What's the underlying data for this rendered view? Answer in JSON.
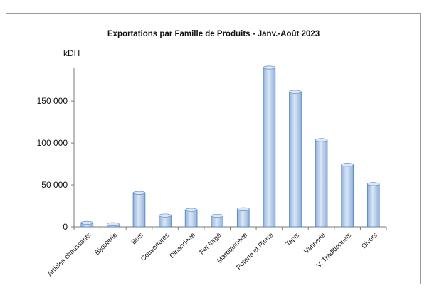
{
  "chart_data": {
    "type": "bar",
    "title": "Exportations  par Famille de Produits - Janv.-Août 2023",
    "unit_label": "kDH",
    "xlabel": "",
    "ylabel": "kDH",
    "categories": [
      "Articles chaussants",
      "Bijouterie",
      "Bois",
      "Couvertures",
      "Dinanderie",
      "Fer forgé",
      "Maroquinerie",
      "Poterie et Pierre",
      "Tapis",
      "Vannerie",
      "V. Traditionnels",
      "Divers"
    ],
    "values": [
      4800,
      3200,
      40500,
      13500,
      20200,
      13200,
      21000,
      190000,
      161000,
      103500,
      74000,
      51000
    ],
    "ylim": [
      0,
      190000
    ],
    "yticks": [
      0,
      50000,
      100000,
      150000
    ],
    "ytick_labels": [
      "0",
      "50 000",
      "100 000",
      "150 000"
    ],
    "grid": false,
    "legend": "none",
    "colors": {
      "bar_fill": "#8fb0dc",
      "bar_edge": "#4f7fbf",
      "bar_highlight": "#dbe7f6"
    }
  }
}
